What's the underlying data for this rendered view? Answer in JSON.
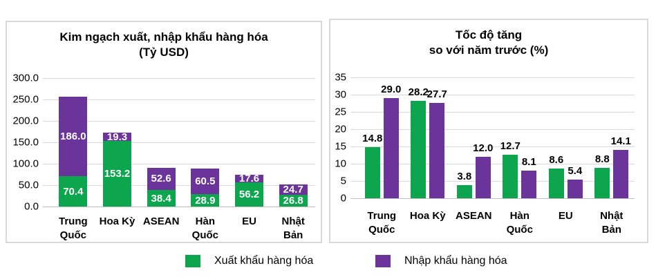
{
  "legend": {
    "items": [
      {
        "id": "export",
        "label": "Xuất khẩu hàng hóa",
        "color": "#0DA64F"
      },
      {
        "id": "import",
        "label": "Nhập khẩu hàng hóa",
        "color": "#6A349A"
      }
    ]
  },
  "chart_data": [
    {
      "type": "bar",
      "subtype": "stacked",
      "title": "Kim ngạch xuất, nhập khẩu hàng hóa (Tỷ USD)",
      "title_lines": [
        "Kim ngạch xuất, nhập khẩu hàng hóa",
        "(Tỷ USD)"
      ],
      "categories": [
        "Trung\nQuốc",
        "Hoa Kỳ",
        "ASEAN",
        "Hàn\nQuốc",
        "EU",
        "Nhật\nBản"
      ],
      "series": [
        {
          "name": "Xuất khẩu hàng hóa",
          "color": "#0DA64F",
          "values": [
            70.4,
            153.2,
            38.4,
            28.9,
            56.2,
            26.8
          ]
        },
        {
          "name": "Nhập khẩu hàng hóa",
          "color": "#6A349A",
          "values": [
            186.0,
            19.3,
            52.6,
            60.5,
            17.6,
            24.7
          ]
        }
      ],
      "ylim": [
        0,
        300
      ],
      "ytick_labels": [
        "0.0",
        "50.0",
        "100.0",
        "150.0",
        "200.0",
        "250.0",
        "300.0"
      ],
      "value_label_format": "one_decimal",
      "value_label_position": "inside",
      "grid": true,
      "legend_position": "bottom"
    },
    {
      "type": "bar",
      "subtype": "grouped",
      "title": "Tốc độ tăng so với năm trước (%)",
      "title_lines": [
        "Tốc độ tăng",
        "so với năm trước (%)"
      ],
      "categories": [
        "Trung\nQuốc",
        "Hoa Kỳ",
        "ASEAN",
        "Hàn\nQuốc",
        "EU",
        "Nhật\nBản"
      ],
      "series": [
        {
          "name": "Xuất khẩu hàng hóa",
          "color": "#0DA64F",
          "values": [
            14.8,
            28.2,
            3.8,
            12.7,
            8.6,
            8.8
          ]
        },
        {
          "name": "Nhập khẩu hàng hóa",
          "color": "#6A349A",
          "values": [
            29.0,
            27.7,
            12.0,
            8.1,
            5.4,
            14.1
          ]
        }
      ],
      "ylim": [
        0,
        35
      ],
      "ytick_labels": [
        "0",
        "5",
        "10",
        "15",
        "20",
        "25",
        "30",
        "35"
      ],
      "value_label_format": "one_decimal",
      "value_label_position": "above",
      "grid": true,
      "legend_position": "bottom"
    }
  ],
  "colors": {
    "export_green": "#0DA64F",
    "import_purple": "#6A349A",
    "gridline": "#D9D9D9",
    "baseline": "#BFBFBF",
    "panel_border": "#D9D9D9",
    "text": "#000000"
  }
}
